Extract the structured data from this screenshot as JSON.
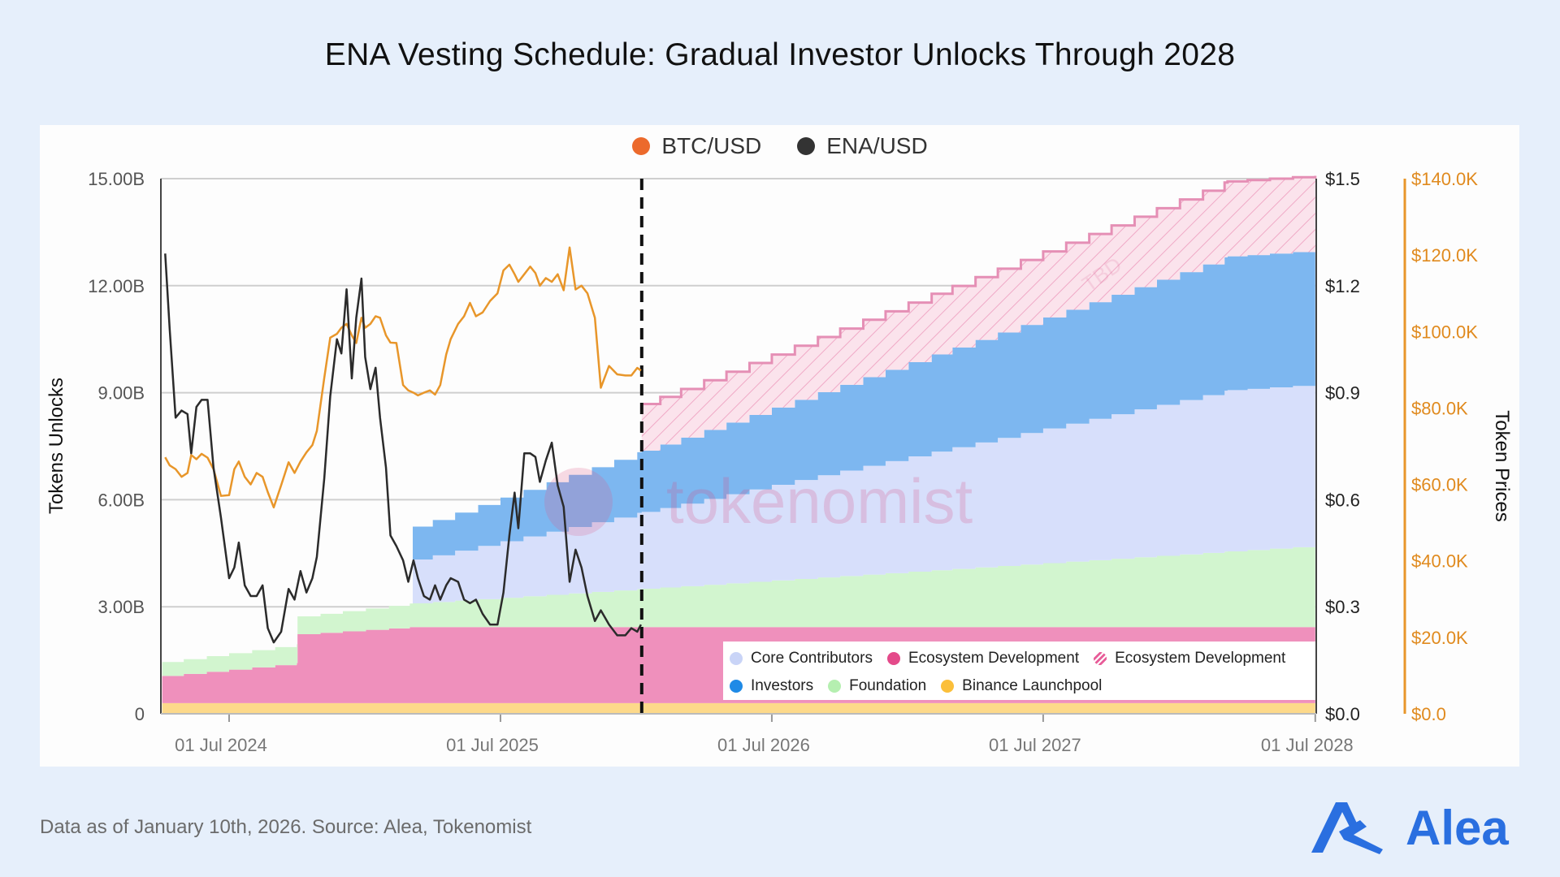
{
  "title": "ENA Vesting Schedule: Gradual Investor Unlocks Through 2028",
  "footer": "Data as of January 10th, 2026. Source: Alea, Tokenomist",
  "logo": {
    "text": "Alea",
    "color": "#2a6fe0"
  },
  "watermark": {
    "text": "tokenomist",
    "tbd": "TBD"
  },
  "chart_data": {
    "type": "area",
    "title": "",
    "ylabel": "Tokens Unlocks",
    "y2label": "Token Prices",
    "ylim": [
      0,
      15
    ],
    "y_unit": "B tokens",
    "y_ticks": [
      "0",
      "3.00B",
      "6.00B",
      "9.00B",
      "12.00B",
      "15.00B"
    ],
    "y2_ticks": [
      "$0.0",
      "$0.3",
      "$0.6",
      "$0.9",
      "$1.2",
      "$1.5"
    ],
    "y2lim": [
      0,
      1.5
    ],
    "y3_ticks": [
      "$0.0",
      "$20.0K",
      "$40.0K",
      "$60.0K",
      "$80.0K",
      "$100.0K",
      "$120.0K",
      "$140.0K"
    ],
    "y3lim": [
      0,
      140
    ],
    "x_ticks": [
      {
        "date": "2024-07-01",
        "label": "01 Jul 2024"
      },
      {
        "date": "2025-07-01",
        "label": "01 Jul 2025"
      },
      {
        "date": "2026-07-01",
        "label": "01 Jul 2026"
      },
      {
        "date": "2027-07-01",
        "label": "01 Jul 2027"
      },
      {
        "date": "2028-07-01",
        "label": "01 Jul 2028"
      }
    ],
    "xlim": [
      "2024-04-02",
      "2028-07-01"
    ],
    "today_marker": "2026-01-07",
    "grid": true,
    "price_legend": [
      {
        "name": "BTC/USD",
        "color": "#ec6a2c",
        "line_color": "#e8962a"
      },
      {
        "name": "ENA/USD",
        "color": "#333333",
        "line_color": "#2b2b2b"
      }
    ],
    "vesting_legend_position": "bottom-right",
    "vesting_series": [
      {
        "name": "Binance Launchpool",
        "color": "#fdd98a",
        "legend_color": "#fbbf3a",
        "hatched": false,
        "points": [
          [
            "2024-04-02",
            0.3
          ],
          [
            "2028-07-01",
            0.3
          ]
        ]
      },
      {
        "name": "Ecosystem Development",
        "color": "#ef90bc",
        "legend_color": "#e44a8a",
        "hatched": false,
        "points": [
          [
            "2024-04-02",
            0.76
          ],
          [
            "2024-09-30",
            1.12
          ],
          [
            "2024-10-01",
            1.93
          ],
          [
            "2025-03-01",
            2.13
          ],
          [
            "2028-07-01",
            2.13
          ]
        ]
      },
      {
        "name": "Foundation",
        "color": "#d2f5cf",
        "legend_color": "#b5efb0",
        "hatched": false,
        "points": [
          [
            "2024-04-02",
            0.39
          ],
          [
            "2024-09-30",
            0.53
          ],
          [
            "2024-10-01",
            0.5
          ],
          [
            "2025-03-01",
            0.66
          ],
          [
            "2028-07-01",
            2.28
          ]
        ]
      },
      {
        "name": "Core Contributors",
        "color": "#d7dffb",
        "legend_color": "#c9d4f7",
        "hatched": false,
        "points": [
          [
            "2025-03-05",
            1.23
          ],
          [
            "2028-03-05",
            4.52
          ],
          [
            "2028-07-01",
            4.52
          ]
        ]
      },
      {
        "name": "Investors",
        "color": "#7db7f0",
        "legend_color": "#1f8ae6",
        "hatched": false,
        "points": [
          [
            "2025-03-05",
            0.92
          ],
          [
            "2028-03-05",
            3.75
          ],
          [
            "2028-07-01",
            3.75
          ]
        ]
      },
      {
        "name": "Ecosystem Development",
        "color": "#fbe0ea",
        "legend_color": "#e85d99",
        "hatched": true,
        "points": [
          [
            "2026-01-07",
            1.31
          ],
          [
            "2028-03-05",
            2.1
          ],
          [
            "2028-07-01",
            2.1
          ]
        ]
      }
    ],
    "legend_order": [
      3,
      1,
      5,
      4,
      2,
      0
    ],
    "prices": {
      "dates": [
        "2024-04-06",
        "2024-04-12",
        "2024-04-20",
        "2024-04-28",
        "2024-05-06",
        "2024-05-11",
        "2024-05-18",
        "2024-05-25",
        "2024-06-02",
        "2024-06-10",
        "2024-06-20",
        "2024-07-01",
        "2024-07-08",
        "2024-07-14",
        "2024-07-22",
        "2024-07-30",
        "2024-08-07",
        "2024-08-15",
        "2024-08-22",
        "2024-08-30",
        "2024-09-09",
        "2024-09-19",
        "2024-09-27",
        "2024-10-05",
        "2024-10-13",
        "2024-10-21",
        "2024-10-27",
        "2024-11-06",
        "2024-11-14",
        "2024-11-23",
        "2024-11-29",
        "2024-12-06",
        "2024-12-13",
        "2024-12-19",
        "2024-12-26",
        "2024-12-31",
        "2025-01-07",
        "2025-01-14",
        "2025-01-20",
        "2025-01-28",
        "2025-02-03",
        "2025-02-11",
        "2025-02-20",
        "2025-02-27",
        "2025-03-06",
        "2025-03-12",
        "2025-03-20",
        "2025-03-28",
        "2025-04-04",
        "2025-04-11",
        "2025-04-19",
        "2025-04-25",
        "2025-05-05",
        "2025-05-13",
        "2025-05-21",
        "2025-05-29",
        "2025-06-07",
        "2025-06-17",
        "2025-06-27",
        "2025-07-05",
        "2025-07-13",
        "2025-07-20",
        "2025-07-25",
        "2025-08-02",
        "2025-08-10",
        "2025-08-17",
        "2025-08-23",
        "2025-08-31",
        "2025-09-08",
        "2025-09-16",
        "2025-09-24",
        "2025-10-02",
        "2025-10-10",
        "2025-10-18",
        "2025-10-26",
        "2025-11-05",
        "2025-11-13",
        "2025-11-24",
        "2025-12-05",
        "2025-12-16",
        "2025-12-24",
        "2026-01-01",
        "2026-01-06"
      ],
      "ena_usd": [
        1.29,
        1.08,
        0.83,
        0.85,
        0.84,
        0.73,
        0.86,
        0.88,
        0.88,
        0.69,
        0.55,
        0.38,
        0.41,
        0.48,
        0.36,
        0.33,
        0.33,
        0.36,
        0.24,
        0.2,
        0.23,
        0.35,
        0.32,
        0.4,
        0.34,
        0.38,
        0.44,
        0.66,
        0.89,
        1.05,
        1.01,
        1.19,
        0.94,
        1.11,
        1.22,
        1.0,
        0.91,
        0.97,
        0.83,
        0.69,
        0.5,
        0.47,
        0.43,
        0.37,
        0.43,
        0.38,
        0.33,
        0.32,
        0.36,
        0.32,
        0.36,
        0.38,
        0.37,
        0.32,
        0.31,
        0.32,
        0.28,
        0.25,
        0.25,
        0.34,
        0.5,
        0.62,
        0.52,
        0.73,
        0.73,
        0.72,
        0.65,
        0.71,
        0.76,
        0.64,
        0.58,
        0.37,
        0.46,
        0.41,
        0.33,
        0.26,
        0.29,
        0.25,
        0.22,
        0.22,
        0.24,
        0.23,
        0.25
      ],
      "btc_usd_k": [
        67.1,
        65,
        64,
        62,
        63,
        67.7,
        66.6,
        68,
        67,
        64,
        57,
        57.2,
        64,
        66,
        62,
        60,
        63,
        62,
        58,
        54,
        59.8,
        65.8,
        63,
        66,
        68.4,
        70.3,
        74,
        87.9,
        98.4,
        99.4,
        101,
        102,
        99,
        97,
        103.6,
        101,
        102,
        104,
        103.6,
        99,
        97.1,
        97,
        86,
        84.6,
        84,
        83.3,
        84,
        84.6,
        83.5,
        86,
        94,
        98,
        102,
        104,
        107.5,
        104,
        105,
        108,
        110,
        116,
        117.5,
        115,
        113,
        115,
        117,
        115.3,
        112,
        114,
        113,
        115,
        110.8,
        122,
        111,
        112,
        110,
        103.6,
        85.3,
        91,
        88.8,
        88.5,
        88.5,
        90.5,
        89.8
      ]
    }
  }
}
